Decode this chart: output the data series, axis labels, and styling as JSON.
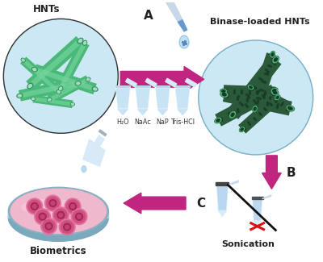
{
  "bg_color": "#ffffff",
  "arrow_color": "#c0257f",
  "hnt_circle_color": "#cce8f4",
  "hnt_circle_edge": "#7ab0c8",
  "label_A": "A",
  "label_B": "B",
  "label_C": "C",
  "label_HNTs": "HNTs",
  "label_binase": "Binase-loaded HNTs",
  "label_sonication": "Sonication",
  "label_biometrics": "Biometrics",
  "tube_labels": [
    "H₂O",
    "NaAc",
    "NaP",
    "Tris-HCl"
  ],
  "pink_cell_color": "#d85080",
  "pink_medium_color": "#f0b8cc",
  "petri_rim_color": "#8ab0c0",
  "red_cross_color": "#dd1111",
  "eppendorf_color": "#d8ecf8",
  "eppendorf_cap_color": "#444444",
  "tube_light_outer": "#4ab878",
  "tube_light_inner": "#8ad8b0",
  "tube_dark_outer": "#2a5a3a",
  "tube_dark_inner": "#3a8a5a",
  "tube_dark_ring": "#5abf80"
}
